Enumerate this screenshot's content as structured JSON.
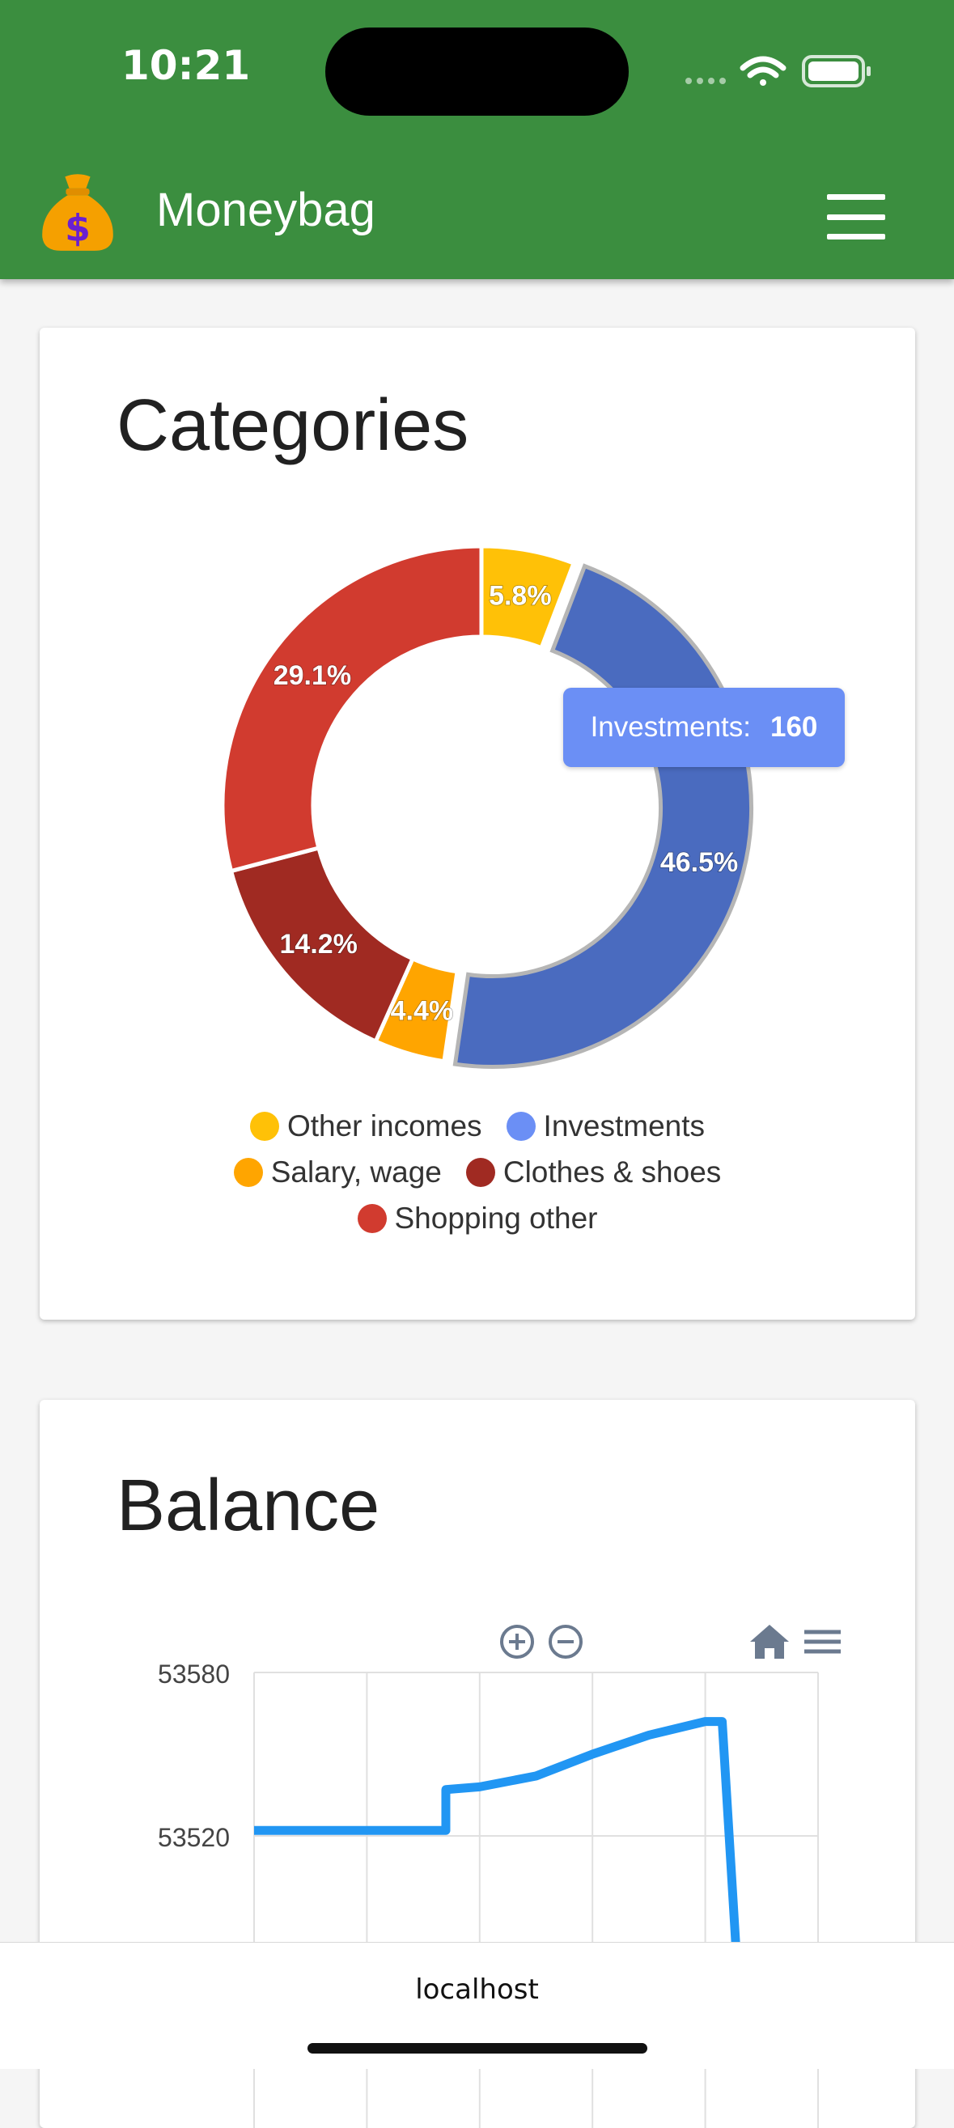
{
  "status_bar": {
    "time": "10:21"
  },
  "app": {
    "title": "Moneybag",
    "logo_icon": "money-bag-icon",
    "menu_icon": "hamburger-menu-icon"
  },
  "categories": {
    "title": "Categories",
    "tooltip": {
      "label": "Investments:",
      "value": "160"
    }
  },
  "balance": {
    "title": "Balance"
  },
  "browser": {
    "url": "localhost"
  },
  "colors": {
    "header": "#3b8e3f",
    "other_incomes": "#ffc107",
    "investments": "#4a6bbf",
    "investments_legend": "#6b8ff5",
    "salary_wage": "#ffa500",
    "clothes_shoes": "#a02a22",
    "shopping_other": "#d13b2f",
    "balance_line": "#2196f3"
  },
  "chart_data": [
    {
      "type": "pie",
      "title": "Categories",
      "slices": [
        {
          "name": "Other incomes",
          "percent": 5.8,
          "label": "5.8%",
          "color": "#ffc107"
        },
        {
          "name": "Investments",
          "percent": 46.5,
          "label": "46.5%",
          "value": 160,
          "color": "#4a6bbf",
          "legend_color": "#6b8ff5"
        },
        {
          "name": "Salary, wage",
          "percent": 4.4,
          "label": "4.4%",
          "color": "#ffa500"
        },
        {
          "name": "Clothes & shoes",
          "percent": 14.2,
          "label": "14.2%",
          "color": "#a02a22"
        },
        {
          "name": "Shopping other",
          "percent": 29.1,
          "label": "29.1%",
          "color": "#d13b2f"
        }
      ],
      "legend_rows": [
        [
          "Other incomes",
          "Investments"
        ],
        [
          "Salary, wage",
          "Clothes & shoes"
        ],
        [
          "Shopping other"
        ]
      ]
    },
    {
      "type": "line",
      "title": "Balance",
      "y_ticks": [
        53580,
        53520
      ],
      "ylim": [
        53460,
        53580
      ],
      "grid": true,
      "series": [
        {
          "values": [
            [
              0,
              53522
            ],
            [
              1.7,
              53522
            ],
            [
              1.7,
              53537
            ],
            [
              2.0,
              53538
            ],
            [
              2.5,
              53542
            ],
            [
              3.0,
              53550
            ],
            [
              3.5,
              53557
            ],
            [
              4.0,
              53562
            ],
            [
              4.15,
              53562
            ],
            [
              4.3,
              53460
            ]
          ],
          "color": "#2196f3"
        }
      ],
      "xlim": [
        0,
        5
      ],
      "toolbar_icons": [
        "zoom-in-icon",
        "zoom-out-icon",
        "home-icon",
        "menu-icon"
      ]
    }
  ]
}
